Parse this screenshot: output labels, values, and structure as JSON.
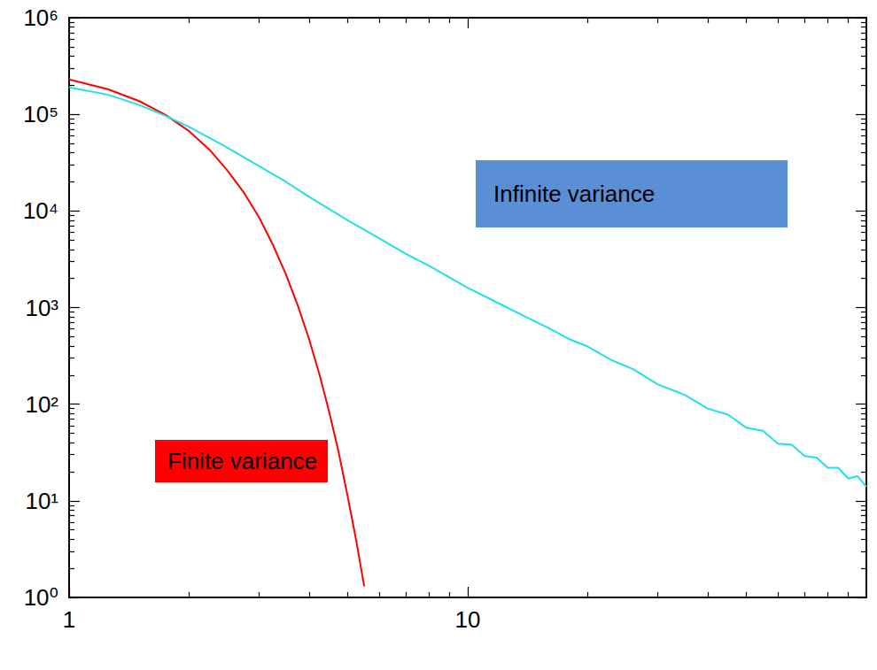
{
  "chart_data": {
    "type": "line",
    "log": true,
    "grid": false,
    "xlim": [
      1,
      100
    ],
    "xticks": [
      1,
      10
    ],
    "ylim": [
      1,
      1000000
    ],
    "yticks": [
      {
        "value": 1,
        "label": "10⁰"
      },
      {
        "value": 10,
        "label": "10¹"
      },
      {
        "value": 100,
        "label": "10²"
      },
      {
        "value": 1000,
        "label": "10³"
      },
      {
        "value": 10000,
        "label": "10⁴"
      },
      {
        "value": 100000,
        "label": "10⁵"
      },
      {
        "value": 1000000,
        "label": "10⁶"
      }
    ],
    "series": [
      {
        "color": "#ff0000",
        "x": [
          1,
          1.25,
          1.5,
          1.75,
          2,
          2.25,
          2.5,
          2.75,
          3,
          3.25,
          3.5,
          3.75,
          4,
          4.25,
          4.5,
          4.75,
          5,
          5.25,
          5.5
        ],
        "values": [
          230000,
          182000,
          137000,
          98000,
          67000,
          43000,
          26000,
          15300,
          8500,
          4400,
          2200,
          1040,
          470,
          200,
          81,
          31,
          11,
          3.9,
          1.3
        ]
      },
      {
        "color": "#1fe0ea",
        "x": [
          1,
          1.25,
          1.5,
          1.75,
          2,
          2.5,
          3,
          3.5,
          4,
          5,
          6,
          7,
          8,
          9,
          10,
          12,
          14,
          16,
          18,
          20,
          23,
          26,
          30,
          35,
          40,
          45,
          50,
          55,
          60,
          65,
          70,
          75,
          80,
          85,
          90,
          95,
          100
        ],
        "values": [
          190000,
          160000,
          125000,
          96000,
          74000,
          45000,
          29000,
          20000,
          14000,
          8000,
          5200,
          3600,
          2700,
          2050,
          1600,
          1100,
          800,
          610,
          470,
          395,
          285,
          230,
          160,
          125,
          90,
          78,
          57,
          53,
          39,
          38,
          29,
          28,
          22,
          22,
          17,
          18,
          14
        ]
      }
    ],
    "annotations": [
      {
        "text": "Infinite variance",
        "color": "#5a8fd5"
      },
      {
        "text": "Finite variance",
        "color": "#ff0000"
      }
    ]
  }
}
